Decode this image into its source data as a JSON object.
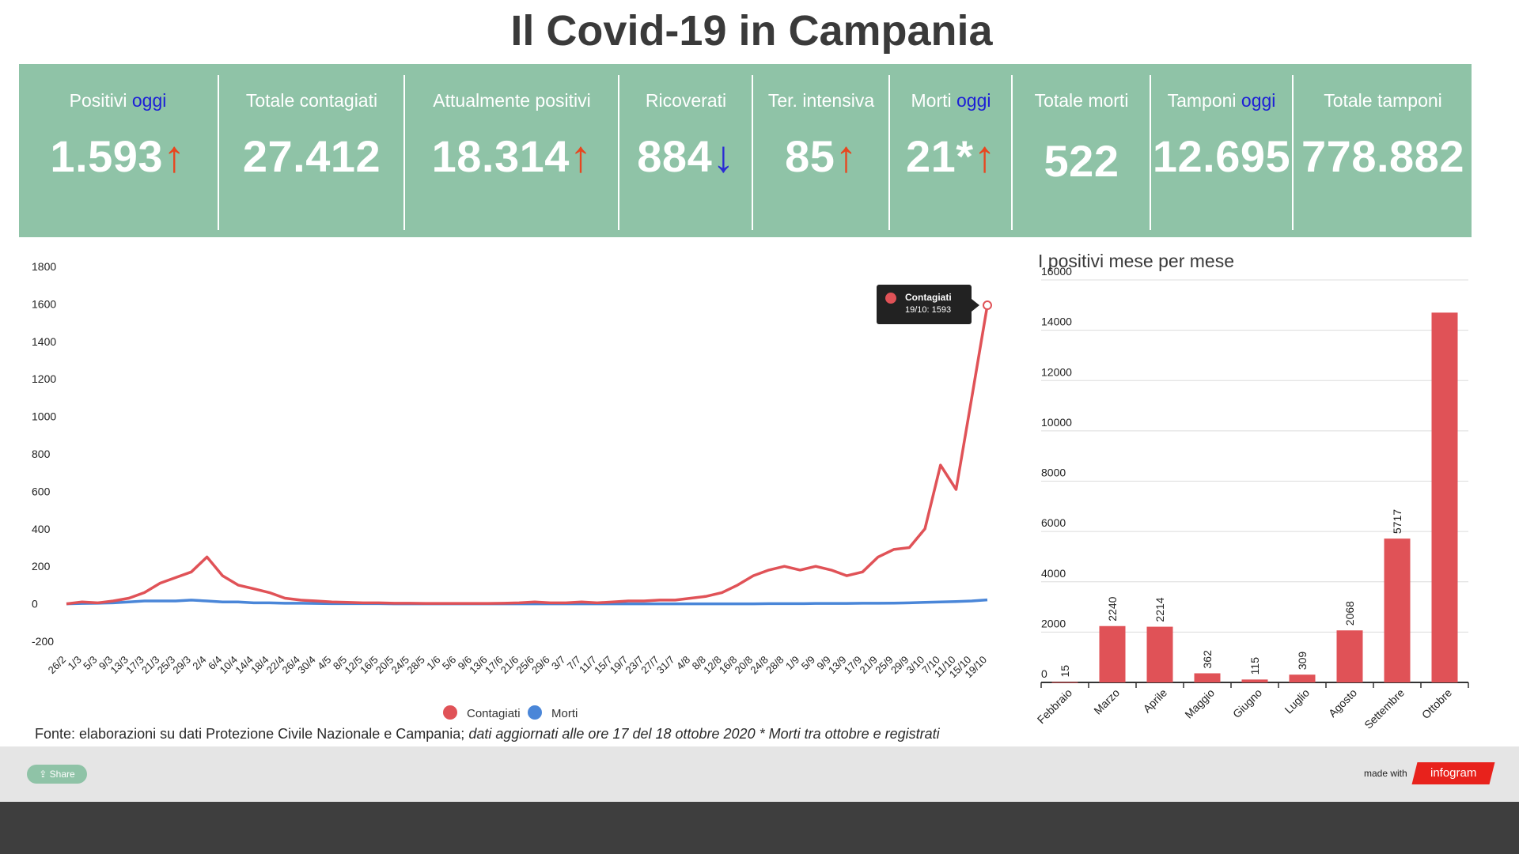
{
  "title": "Il Covid-19 in Campania",
  "stats": [
    {
      "label": "Positivi",
      "oggi": "oggi",
      "value": "1.593",
      "arrow": "↑",
      "trend": "up"
    },
    {
      "label": "Totale contagiati",
      "oggi": "",
      "value": "27.412",
      "arrow": "",
      "trend": ""
    },
    {
      "label": "Attualmente positivi",
      "oggi": "",
      "value": "18.314",
      "arrow": "↑",
      "trend": "up"
    },
    {
      "label": "Ricoverati",
      "oggi": "",
      "value": "884",
      "arrow": "↓",
      "trend": "down"
    },
    {
      "label": "Ter. intensiva",
      "oggi": "",
      "value": "85",
      "arrow": "↑",
      "trend": "up"
    },
    {
      "label": "Morti",
      "oggi": "oggi",
      "value": "21*",
      "arrow": "↑",
      "trend": "up"
    },
    {
      "label": "Totale morti",
      "oggi": "",
      "value": "522",
      "arrow": "",
      "trend": ""
    },
    {
      "label": "Tamponi",
      "oggi": "oggi",
      "value": "12.695",
      "arrow": "",
      "trend": ""
    },
    {
      "label": "Totale tamponi",
      "oggi": "",
      "value": "778.882",
      "arrow": "",
      "trend": ""
    }
  ],
  "colors": {
    "panel": "#8fc3a7",
    "contagiati": "#e05257",
    "morti": "#4a86d8",
    "up_arrow": "#e8461f",
    "down_arrow": "#2b2bd4",
    "oggi": "#1d1fd6"
  },
  "chart_data": [
    {
      "type": "line",
      "title": "",
      "ylim": [
        -200,
        1800
      ],
      "yticks": [
        1800,
        1600,
        1400,
        1200,
        1000,
        800,
        600,
        400,
        200,
        0,
        -200
      ],
      "xlabels": [
        "26/2",
        "1/3",
        "5/3",
        "9/3",
        "13/3",
        "17/3",
        "21/3",
        "25/3",
        "29/3",
        "2/4",
        "6/4",
        "10/4",
        "14/4",
        "18/4",
        "22/4",
        "26/4",
        "30/4",
        "4/5",
        "8/5",
        "12/5",
        "16/5",
        "20/5",
        "24/5",
        "28/5",
        "1/6",
        "5/6",
        "9/6",
        "13/6",
        "17/6",
        "21/6",
        "25/6",
        "29/6",
        "3/7",
        "7/7",
        "11/7",
        "15/7",
        "19/7",
        "23/7",
        "27/7",
        "31/7",
        "4/8",
        "8/8",
        "12/8",
        "16/8",
        "20/8",
        "24/8",
        "28/8",
        "1/9",
        "5/9",
        "9/9",
        "13/9",
        "17/9",
        "21/9",
        "25/9",
        "29/9",
        "3/10",
        "7/10",
        "11/10",
        "15/10",
        "19/10"
      ],
      "legend": [
        "Contagiati",
        "Morti"
      ],
      "legend_position": "bottom",
      "tooltip": {
        "series": "Contagiati",
        "text": "19/10: 1593"
      },
      "series": [
        {
          "name": "Contagiati",
          "values": [
            0,
            10,
            5,
            15,
            30,
            60,
            110,
            140,
            170,
            250,
            150,
            100,
            80,
            60,
            30,
            20,
            15,
            10,
            8,
            5,
            5,
            3,
            3,
            2,
            2,
            2,
            2,
            2,
            3,
            5,
            10,
            5,
            5,
            10,
            5,
            10,
            15,
            15,
            20,
            20,
            30,
            40,
            60,
            100,
            150,
            180,
            200,
            180,
            200,
            180,
            150,
            170,
            250,
            290,
            300,
            400,
            740,
            610,
            1100,
            1593
          ]
        },
        {
          "name": "Morti",
          "values": [
            0,
            2,
            3,
            5,
            10,
            15,
            15,
            15,
            20,
            15,
            10,
            10,
            5,
            5,
            3,
            3,
            2,
            1,
            1,
            1,
            1,
            0,
            0,
            0,
            0,
            0,
            0,
            0,
            0,
            0,
            0,
            0,
            0,
            0,
            0,
            0,
            0,
            0,
            0,
            0,
            0,
            0,
            0,
            0,
            0,
            1,
            1,
            1,
            2,
            2,
            2,
            3,
            3,
            4,
            5,
            8,
            10,
            12,
            15,
            21
          ]
        }
      ]
    },
    {
      "type": "bar",
      "title": "I positivi mese per mese",
      "ylim": [
        0,
        16000
      ],
      "yticks": [
        16000,
        14000,
        12000,
        10000,
        8000,
        6000,
        4000,
        2000,
        0
      ],
      "categories": [
        "Febbraio",
        "Marzo",
        "Aprile",
        "Maggio",
        "Giugno",
        "Luglio",
        "Agosto",
        "Settembre",
        "Ottobre"
      ],
      "values": [
        15,
        2240,
        2214,
        362,
        115,
        309,
        2068,
        5717,
        14700
      ],
      "data_labels": [
        "15",
        "2240",
        "2214",
        "362",
        "115",
        "309",
        "2068",
        "5717",
        ""
      ]
    }
  ],
  "source": {
    "text": "Fonte: elaborazioni su dati Protezione Civile Nazionale e Campania; ",
    "italic": "dati aggiornati alle ore 17 del 18 ottobre 2020 * Morti tra ottobre e registrati"
  },
  "footer": {
    "share_label": "Share",
    "made_with": "made with",
    "brand": "infogram"
  }
}
